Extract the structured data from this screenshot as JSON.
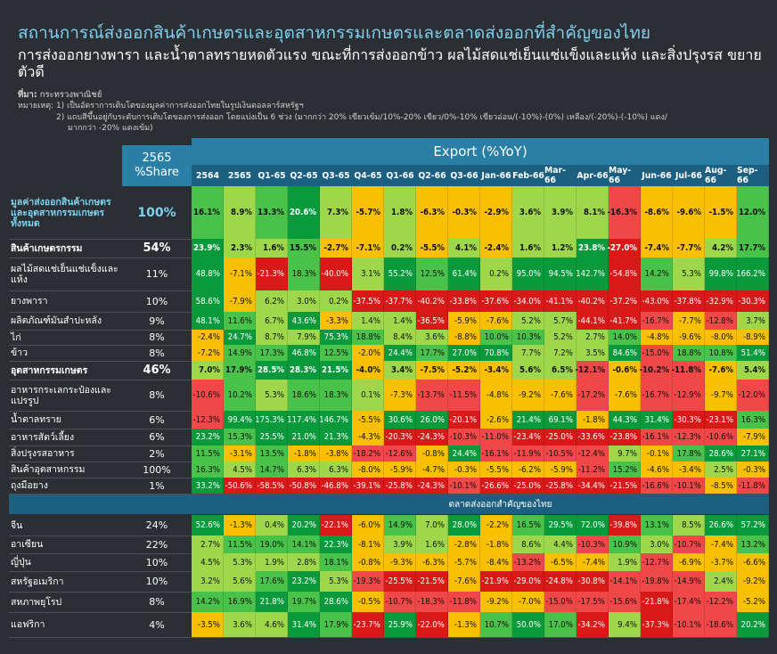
{
  "title": "สถานการณ์ส่งออกสินค้าเกษตรและอุตสาหกรรมเกษตรและตลาดส่งออกที่สำคัญของไทย",
  "subtitle": "การส่งออกยางพารา และน้ำตาลทรายหดตัวแรง ขณะที่การส่งออกข้าว ผลไม้สดแช่เย็นแช่แข็งและแห้ง และสิ่งปรุงรส ขยายตัวดี",
  "source_label": "ที่มา:",
  "source_value": "กระทรวงพาณิชย์",
  "note_line1": "หมายเหตุ: 1) เป็นอัตราการเติบโตของมูลค่าการส่งออกไทยในรูปเงินดอลลาร์สหรัฐฯ",
  "note_line2": "2) แถบสีขึ้นอยู่กับระดับการเติบโตของการส่งออก โดยแบ่งเป็น 6 ช่วง (มากกว่า 20% เขียวเข้ม/10%-20% เขียว/0%-10% เขียวอ่อน/(-10%)-(0%) เหลือง/(-20%)-(-10%) แดง/",
  "note_line3": "มากกว่า -20% แดงเข้ม)",
  "colors": {
    "dark_green": "#0a9a3c",
    "green": "#48c248",
    "light_green": "#9ed84a",
    "yellow": "#f8c000",
    "red": "#f04848",
    "dark_red": "#d91818",
    "header_blue": "#2a7fa6",
    "header_dark": "#1c5f80",
    "title_blue": "#7fd0ee"
  },
  "chart_data": {
    "type": "table",
    "export_header": "Export (%YoY)",
    "share_header_year": "2565",
    "share_header_label": "%Share",
    "columns": [
      "2564",
      "2565",
      "Q1-65",
      "Q2-65",
      "Q3-65",
      "Q4-65",
      "Q1-66",
      "Q2-66",
      "Q3-66",
      "Jan-66",
      "Feb-66",
      "Mar-66",
      "Apr-66",
      "May-66",
      "Jun-66",
      "Jul-66",
      "Aug-66",
      "Sep-66"
    ],
    "section2_title": "ตลาดส่งออกสำคัญของไทย",
    "rows": [
      {
        "label": "มูลค่าส่งออกสินค้าเกษตรและอุตสาหกรรมเกษตรทั้งหมด",
        "share": "100%",
        "style": "blue",
        "values": [
          "16.1%",
          "8.9%",
          "13.3%",
          "20.6%",
          "7.3%",
          "-5.7%",
          "1.8%",
          "-6.3%",
          "-0.3%",
          "-2.9%",
          "3.6%",
          "3.9%",
          "8.1%",
          "-16.3%",
          "-8.6%",
          "-9.6%",
          "-1.5%",
          "12.0%"
        ]
      },
      {
        "label": "สินค้าเกษตรกรรม",
        "share": "54%",
        "style": "bold",
        "values": [
          "23.9%",
          "2.3%",
          "1.6%",
          "15.5%",
          "-2.7%",
          "-7.1%",
          "0.2%",
          "-5.5%",
          "4.1%",
          "-2.4%",
          "1.6%",
          "1.2%",
          "23.8%",
          "-27.0%",
          "-7.4%",
          "-7.7%",
          "4.2%",
          "17.7%"
        ]
      },
      {
        "label": "ผลไม้สดแช่เย็นแช่แข็งและแห้ง",
        "share": "11%",
        "style": "",
        "values": [
          "48.8%",
          "-7.1%",
          "-21.3%",
          "18.3%",
          "-40.0%",
          "3.1%",
          "55.2%",
          "12.5%",
          "61.4%",
          "0.2%",
          "95.0%",
          "94.5%",
          "142.7%",
          "-54.8%",
          "14.2%",
          "5.3%",
          "99.8%",
          "166.2%"
        ]
      },
      {
        "label": "ยางพารา",
        "share": "10%",
        "style": "",
        "values": [
          "58.6%",
          "-7.9%",
          "6.2%",
          "3.0%",
          "0.2%",
          "-37.5%",
          "-37.7%",
          "-40.2%",
          "-33.8%",
          "-37.6%",
          "-34.0%",
          "-41.1%",
          "-40.2%",
          "-37.2%",
          "-43.0%",
          "-37.8%",
          "-32.9%",
          "-30.3%"
        ]
      },
      {
        "label": "ผลิตภัณฑ์มันสำปะหลัง",
        "share": "9%",
        "style": "",
        "values": [
          "48.1%",
          "11.6%",
          "6.7%",
          "43.6%",
          "-3.3%",
          "1.4%",
          "1.4%",
          "-36.5%",
          "-5.9%",
          "-7.6%",
          "5.2%",
          "5.7%",
          "-44.1%",
          "-41.7%",
          "-16.7%",
          "-7.7%",
          "-12.8%",
          "3.7%"
        ]
      },
      {
        "label": "ไก่",
        "share": "8%",
        "style": "",
        "values": [
          "-2.4%",
          "24.7%",
          "8.7%",
          "7.9%",
          "75.3%",
          "18.8%",
          "8.4%",
          "3.6%",
          "-8.8%",
          "10.0%",
          "10.3%",
          "5.2%",
          "2.7%",
          "14.0%",
          "-4.8%",
          "-9.6%",
          "-8.0%",
          "-8.9%"
        ]
      },
      {
        "label": "ข้าว",
        "share": "8%",
        "style": "",
        "values": [
          "-7.2%",
          "14.9%",
          "17.3%",
          "46.8%",
          "12.5%",
          "-2.0%",
          "24.4%",
          "17.7%",
          "27.0%",
          "70.8%",
          "7.7%",
          "7.2%",
          "3.5%",
          "84.6%",
          "-15.0%",
          "18.8%",
          "10.8%",
          "51.4%"
        ]
      },
      {
        "label": "อุตสาหกรรมเกษตร",
        "share": "46%",
        "style": "bold",
        "values": [
          "7.0%",
          "17.9%",
          "28.5%",
          "28.3%",
          "21.5%",
          "-4.0%",
          "3.4%",
          "-7.5%",
          "-5.2%",
          "-3.4%",
          "5.6%",
          "6.5%",
          "-12.1%",
          "-0.6%",
          "-10.2%",
          "-11.8%",
          "-7.6%",
          "5.4%"
        ]
      },
      {
        "label": "อาหารกระเลกระป๋องและแปรรูป",
        "share": "8%",
        "style": "",
        "values": [
          "-10.6%",
          "10.2%",
          "5.3%",
          "18.6%",
          "18.3%",
          "0.1%",
          "-7.3%",
          "-13.7%",
          "-11.5%",
          "-4.8%",
          "-9.2%",
          "-7.6%",
          "-17.2%",
          "-7.6%",
          "-16.7%",
          "-12.9%",
          "-9.7%",
          "-12.0%"
        ]
      },
      {
        "label": "น้ำตาลทราย",
        "share": "6%",
        "style": "",
        "values": [
          "-12.3%",
          "99.4%",
          "175.3%",
          "117.4%",
          "146.7%",
          "-5.5%",
          "30.6%",
          "26.0%",
          "-20.1%",
          "-2.6%",
          "21.4%",
          "69.1%",
          "-1.8%",
          "44.3%",
          "31.4%",
          "-30.3%",
          "-23.1%",
          "16.3%"
        ]
      },
      {
        "label": "อาหารสัตว์เลี้ยง",
        "share": "6%",
        "style": "",
        "values": [
          "23.2%",
          "15.3%",
          "25.5%",
          "21.0%",
          "21.3%",
          "-4.3%",
          "-20.3%",
          "-24.3%",
          "-10.3%",
          "-11.0%",
          "-23.4%",
          "-25.0%",
          "-33.6%",
          "-23.8%",
          "-16.1%",
          "-12.3%",
          "-10.6%",
          "-7.9%"
        ]
      },
      {
        "label": "สิ่งปรุงรสอาหาร",
        "share": "2%",
        "style": "",
        "values": [
          "11.5%",
          "-3.1%",
          "13.5%",
          "-1.8%",
          "-3.8%",
          "-18.2%",
          "-12.6%",
          "-0.8%",
          "24.4%",
          "-16.1%",
          "-11.9%",
          "-10.5%",
          "-12.4%",
          "9.7%",
          "-0.1%",
          "17.8%",
          "28.6%",
          "27.1%"
        ]
      },
      {
        "label": "สินค้าอุตสาหกรรม",
        "share": "100%",
        "style": "",
        "values": [
          "16.3%",
          "4.5%",
          "14.7%",
          "6.3%",
          "6.3%",
          "-8.0%",
          "-5.9%",
          "-4.7%",
          "-0.3%",
          "-5.5%",
          "-6.2%",
          "-5.9%",
          "-11.2%",
          "15.2%",
          "-4.6%",
          "-3.4%",
          "2.5%",
          "-0.3%"
        ]
      },
      {
        "label": "ถุงมือยาง",
        "share": "1%",
        "style": "",
        "values": [
          "33.2%",
          "-50.6%",
          "-58.5%",
          "-50.8%",
          "-46.8%",
          "-39.1%",
          "-25.8%",
          "-24.3%",
          "-10.1%",
          "-26.6%",
          "-25.0%",
          "-25.8%",
          "-34.4%",
          "-21.5%",
          "-16.6%",
          "-10.1%",
          "-8.5%",
          "-11.8%"
        ]
      },
      {
        "label": "จีน",
        "share": "24%",
        "style": "",
        "values": [
          "52.6%",
          "-1.3%",
          "0.4%",
          "20.2%",
          "-22.1%",
          "-6.0%",
          "14.9%",
          "7.0%",
          "28.0%",
          "-2.2%",
          "16.5%",
          "29.5%",
          "72.0%",
          "-39.8%",
          "13.1%",
          "8.5%",
          "26.6%",
          "57.2%"
        ]
      },
      {
        "label": "อาเซียน",
        "share": "22%",
        "style": "",
        "values": [
          "2.7%",
          "11.5%",
          "19.0%",
          "14.1%",
          "22.3%",
          "-8.1%",
          "3.9%",
          "1.6%",
          "-2.8%",
          "-1.8%",
          "8.6%",
          "4.4%",
          "-10.3%",
          "10.9%",
          "3.0%",
          "-10.7%",
          "-7.4%",
          "13.2%"
        ]
      },
      {
        "label": "ญี่ปุ่น",
        "share": "10%",
        "style": "",
        "values": [
          "4.5%",
          "5.3%",
          "1.9%",
          "2.8%",
          "18.1%",
          "-0.8%",
          "-9.3%",
          "-6.3%",
          "-5.7%",
          "-8.4%",
          "-13.2%",
          "-6.5%",
          "-7.4%",
          "1.9%",
          "-12.7%",
          "-6.9%",
          "-3.7%",
          "-6.6%"
        ]
      },
      {
        "label": "สหรัฐอเมริกา",
        "share": "10%",
        "style": "",
        "values": [
          "3.2%",
          "5.6%",
          "17.6%",
          "23.2%",
          "5.3%",
          "-19.3%",
          "-25.5%",
          "-21.5%",
          "-7.6%",
          "-21.9%",
          "-29.0%",
          "-24.8%",
          "-30.8%",
          "-14.1%",
          "-19.8%",
          "-14.9%",
          "2.4%",
          "-9.2%"
        ]
      },
      {
        "label": "สหภาพยุโรป",
        "share": "8%",
        "style": "",
        "values": [
          "14.2%",
          "16.9%",
          "21.8%",
          "19.7%",
          "28.6%",
          "-0.5%",
          "-10.7%",
          "-18.3%",
          "-11.8%",
          "-9.2%",
          "-7.0%",
          "-15.0%",
          "-17.5%",
          "-15.6%",
          "-21.8%",
          "-17.4%",
          "-12.2%",
          "-5.2%"
        ]
      },
      {
        "label": "แอฟริกา",
        "share": "4%",
        "style": "",
        "values": [
          "-3.5%",
          "3.6%",
          "4.6%",
          "31.4%",
          "17.9%",
          "-23.7%",
          "25.9%",
          "-22.0%",
          "-1.3%",
          "10.7%",
          "50.0%",
          "17.0%",
          "-34.2%",
          "9.4%",
          "-37.3%",
          "-10.1%",
          "-18.6%",
          "20.2%"
        ]
      }
    ]
  }
}
